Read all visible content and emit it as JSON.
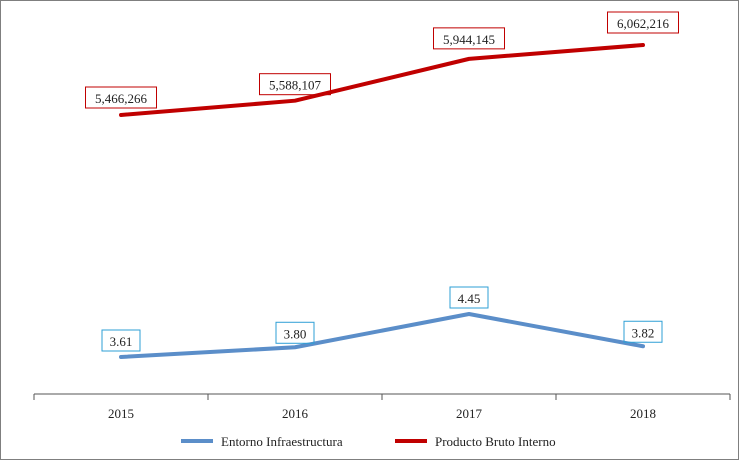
{
  "chart_data": {
    "type": "line",
    "categories": [
      "2015",
      "2016",
      "2017",
      "2018"
    ],
    "title": "",
    "xlabel": "",
    "ylabel": "",
    "grid": false,
    "legend_position": "bottom",
    "series": [
      {
        "name": "Entorno Infraestructura",
        "values": [
          3.61,
          3.8,
          4.45,
          3.82
        ],
        "labels": [
          "3.61",
          "3.80",
          "4.45",
          "3.82"
        ],
        "color": "#5b8ec9"
      },
      {
        "name": "Producto Bruto Interno",
        "values": [
          5466266,
          5588107,
          5944145,
          6062216
        ],
        "labels": [
          "5,466,266",
          "5,588,107",
          "5,944,145",
          "6,062,216"
        ],
        "color": "#c00000"
      }
    ]
  }
}
